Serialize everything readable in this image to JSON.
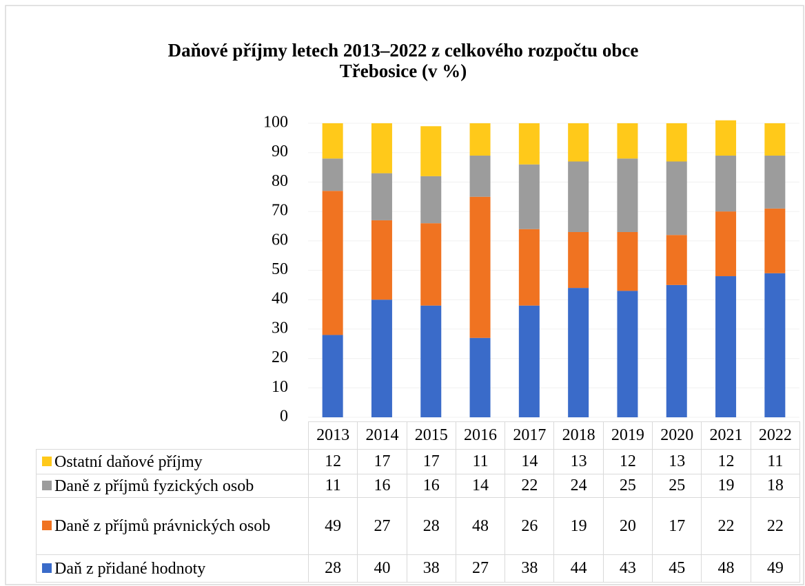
{
  "chart_data": {
    "type": "bar",
    "stacked": true,
    "title": "Daňové příjmy letech 2013–2022 z celkového rozpočtu obce",
    "subtitle": "Třebosice (v %)",
    "categories": [
      "2013",
      "2014",
      "2015",
      "2016",
      "2017",
      "2018",
      "2019",
      "2020",
      "2021",
      "2022"
    ],
    "series": [
      {
        "name": "Daň z přidané hodnoty",
        "color": "#3a6bc9",
        "values": [
          28,
          40,
          38,
          27,
          38,
          44,
          43,
          45,
          48,
          49
        ]
      },
      {
        "name": "Daně z příjmů právnických osob",
        "color": "#f07321",
        "values": [
          49,
          27,
          28,
          48,
          26,
          19,
          20,
          17,
          22,
          22
        ]
      },
      {
        "name": "Daně z příjmů fyzických osob",
        "color": "#9c9c9c",
        "values": [
          11,
          16,
          16,
          14,
          22,
          24,
          25,
          25,
          19,
          18
        ]
      },
      {
        "name": "Ostatní daňové příjmy",
        "color": "#ffc91a",
        "values": [
          12,
          17,
          17,
          11,
          14,
          13,
          12,
          13,
          12,
          11
        ]
      }
    ],
    "ylim": [
      0,
      100
    ],
    "yticks": [
      0,
      10,
      20,
      30,
      40,
      50,
      60,
      70,
      80,
      90,
      100
    ],
    "grid": true
  }
}
